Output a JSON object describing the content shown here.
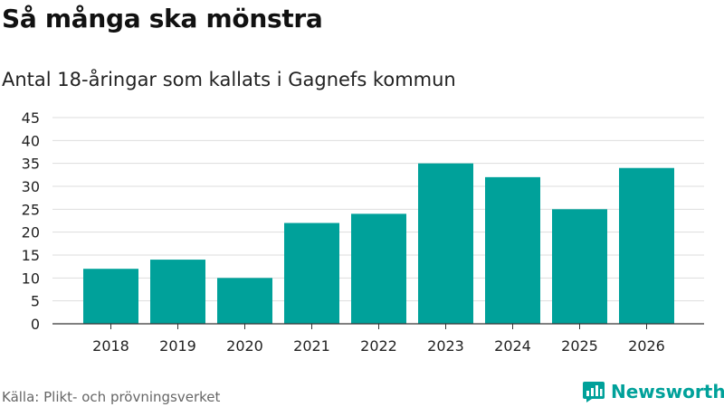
{
  "header": {
    "title": "Så många ska mönstra",
    "subtitle": "Antal 18-åringar som kallats i Gagnefs kommun"
  },
  "footer": {
    "source": "Källa: Plikt- och prövningsverket",
    "brand": "Newsworthy",
    "brand_icon": "bar-chart-icon"
  },
  "colors": {
    "bar": "#00a19a",
    "grid": "#dddddd",
    "axis": "#333333",
    "brand": "#00a19a"
  },
  "chart_data": {
    "type": "bar",
    "categories": [
      "2018",
      "2019",
      "2020",
      "2021",
      "2022",
      "2023",
      "2024",
      "2025",
      "2026"
    ],
    "values": [
      12,
      14,
      10,
      22,
      24,
      35,
      32,
      25,
      34
    ],
    "title": "Så många ska mönstra",
    "subtitle": "Antal 18-åringar som kallats i Gagnefs kommun",
    "xlabel": "",
    "ylabel": "",
    "ylim": [
      0,
      45
    ],
    "yticks": [
      0,
      5,
      10,
      15,
      20,
      25,
      30,
      35,
      40,
      45
    ],
    "grid": true,
    "legend": "none"
  }
}
